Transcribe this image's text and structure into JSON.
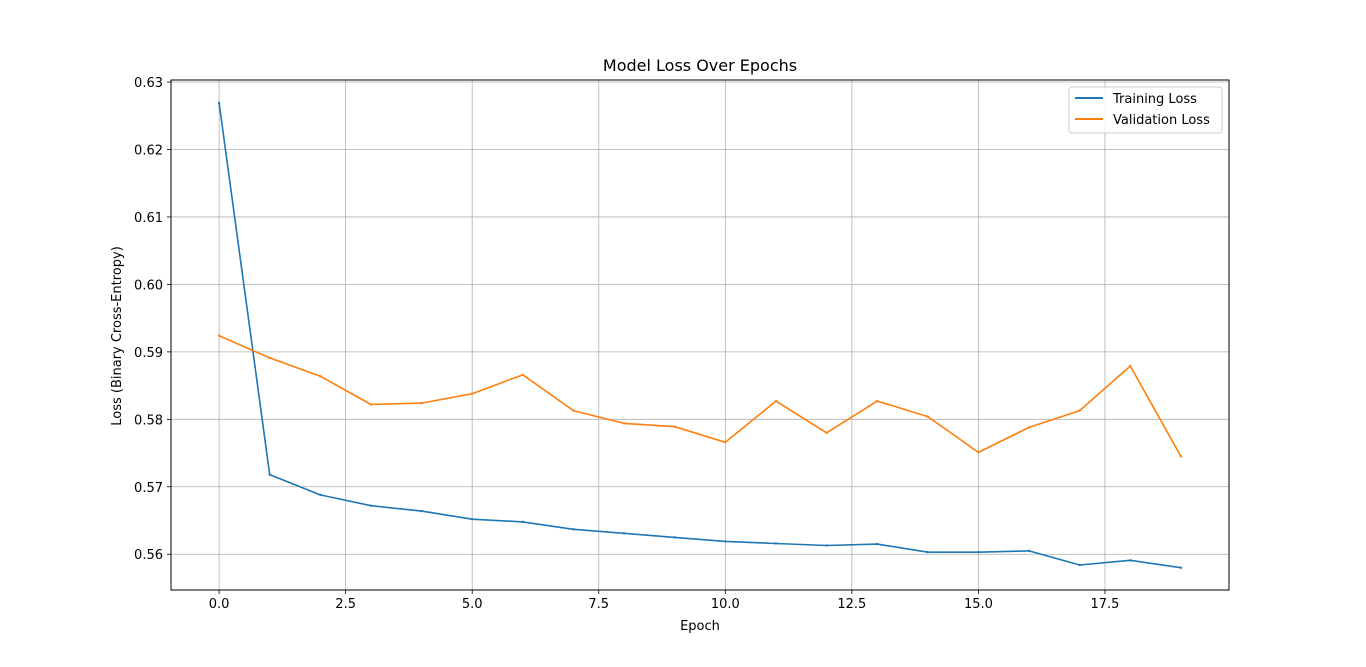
{
  "chart_data": {
    "type": "line",
    "title": "Model Loss Over Epochs",
    "xlabel": "Epoch",
    "ylabel": "Loss (Binary Cross-Entropy)",
    "xlim": [
      -0.95,
      19.95
    ],
    "ylim": [
      0.5547,
      0.6303
    ],
    "xticks": [
      0.0,
      2.5,
      5.0,
      7.5,
      10.0,
      12.5,
      15.0,
      17.5
    ],
    "xtick_labels": [
      "0.0",
      "2.5",
      "5.0",
      "7.5",
      "10.0",
      "12.5",
      "15.0",
      "17.5"
    ],
    "yticks": [
      0.56,
      0.57,
      0.58,
      0.59,
      0.6,
      0.61,
      0.62,
      0.63
    ],
    "ytick_labels": [
      "0.56",
      "0.57",
      "0.58",
      "0.59",
      "0.60",
      "0.61",
      "0.62",
      "0.63"
    ],
    "grid": true,
    "legend_position": "top-right",
    "x": [
      0,
      1,
      2,
      3,
      4,
      5,
      6,
      7,
      8,
      9,
      10,
      11,
      12,
      13,
      14,
      15,
      16,
      17,
      18,
      19
    ],
    "series": [
      {
        "name": "Training Loss",
        "color": "#1f77b4",
        "values": [
          0.6269,
          0.5718,
          0.5688,
          0.5672,
          0.5664,
          0.5652,
          0.5648,
          0.5637,
          0.5631,
          0.5625,
          0.5619,
          0.5616,
          0.5613,
          0.5615,
          0.5603,
          0.5603,
          0.5605,
          0.5584,
          0.5591,
          0.558
        ]
      },
      {
        "name": "Validation Loss",
        "color": "#ff7f0e",
        "values": [
          0.5924,
          0.5891,
          0.5864,
          0.5822,
          0.5824,
          0.5838,
          0.5866,
          0.5813,
          0.5794,
          0.5789,
          0.5766,
          0.5827,
          0.578,
          0.5827,
          0.5804,
          0.5751,
          0.5788,
          0.5813,
          0.5879,
          0.5745
        ]
      }
    ]
  }
}
